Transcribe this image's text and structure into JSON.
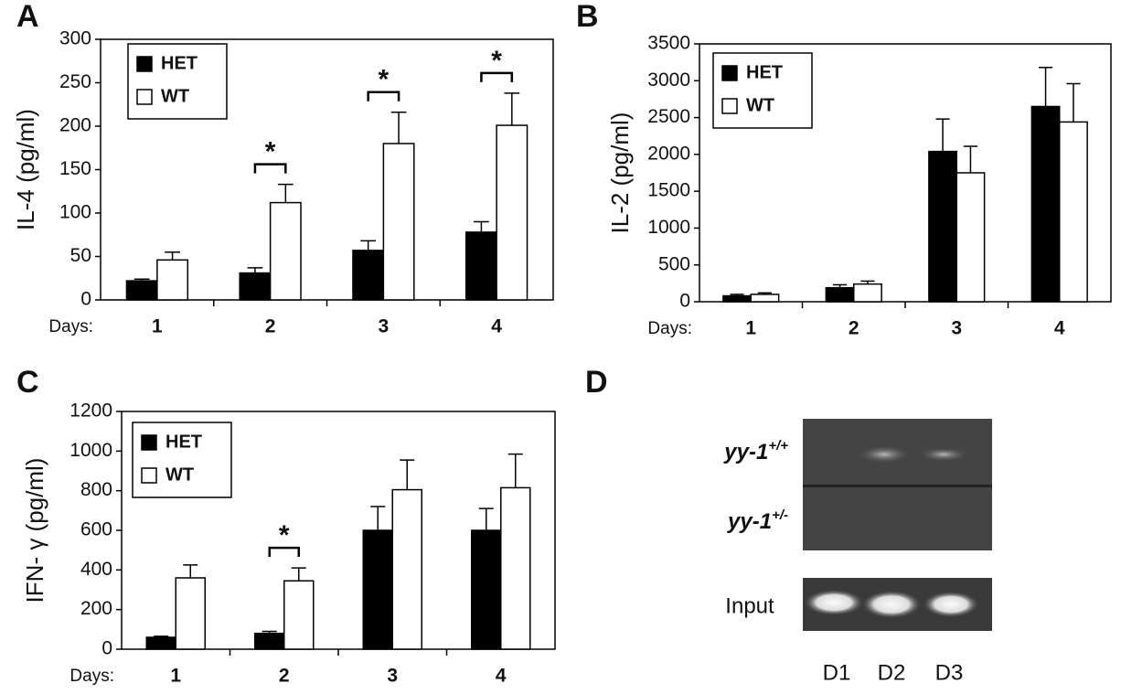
{
  "chart_data": [
    {
      "type": "bar",
      "panel": "A",
      "y_label": "IL-4 (pg/ml)",
      "x_label": "Days:",
      "categories": [
        "1",
        "2",
        "3",
        "4"
      ],
      "series": [
        {
          "name": "HET",
          "color": "#000000",
          "values": [
            22,
            31,
            57,
            78
          ],
          "errors": [
            2,
            6,
            11,
            12
          ]
        },
        {
          "name": "WT",
          "color": "#ffffff",
          "values": [
            46,
            112,
            180,
            201
          ],
          "errors": [
            9,
            21,
            36,
            37
          ]
        }
      ],
      "ylim": [
        0,
        300
      ],
      "yticks": [
        0,
        50,
        100,
        150,
        200,
        250,
        300
      ],
      "significance": [
        {
          "category": "2",
          "label": "*"
        },
        {
          "category": "3",
          "label": "*"
        },
        {
          "category": "4",
          "label": "*"
        }
      ]
    },
    {
      "type": "bar",
      "panel": "B",
      "y_label": "IL-2 (pg/ml)",
      "x_label": "Days:",
      "categories": [
        "1",
        "2",
        "3",
        "4"
      ],
      "series": [
        {
          "name": "HET",
          "color": "#000000",
          "values": [
            80,
            190,
            2040,
            2650
          ],
          "errors": [
            20,
            40,
            440,
            530
          ]
        },
        {
          "name": "WT",
          "color": "#ffffff",
          "values": [
            100,
            240,
            1750,
            2440
          ],
          "errors": [
            20,
            40,
            360,
            520
          ]
        }
      ],
      "ylim": [
        0,
        3500
      ],
      "yticks": [
        0,
        500,
        1000,
        1500,
        2000,
        2500,
        3000,
        3500
      ]
    },
    {
      "type": "bar",
      "panel": "C",
      "y_label": "IFN- γ (pg/ml)",
      "x_label": "Days:",
      "categories": [
        "1",
        "2",
        "3",
        "4"
      ],
      "series": [
        {
          "name": "HET",
          "color": "#000000",
          "values": [
            60,
            80,
            600,
            600
          ],
          "errors": [
            5,
            10,
            120,
            110
          ]
        },
        {
          "name": "WT",
          "color": "#ffffff",
          "values": [
            360,
            345,
            805,
            815
          ],
          "errors": [
            65,
            65,
            150,
            170
          ]
        }
      ],
      "ylim": [
        0,
        1200
      ],
      "yticks": [
        0,
        200,
        400,
        600,
        800,
        1000,
        1200
      ],
      "significance": [
        {
          "category": "2",
          "label": "*"
        }
      ]
    }
  ],
  "gel": {
    "panel": "D",
    "rows": [
      {
        "gene": "yy-1",
        "genotype": "+/+"
      },
      {
        "gene": "yy-1",
        "genotype": "+/-"
      }
    ],
    "input_label": "Input",
    "lanes": [
      "D1",
      "D2",
      "D3"
    ]
  }
}
